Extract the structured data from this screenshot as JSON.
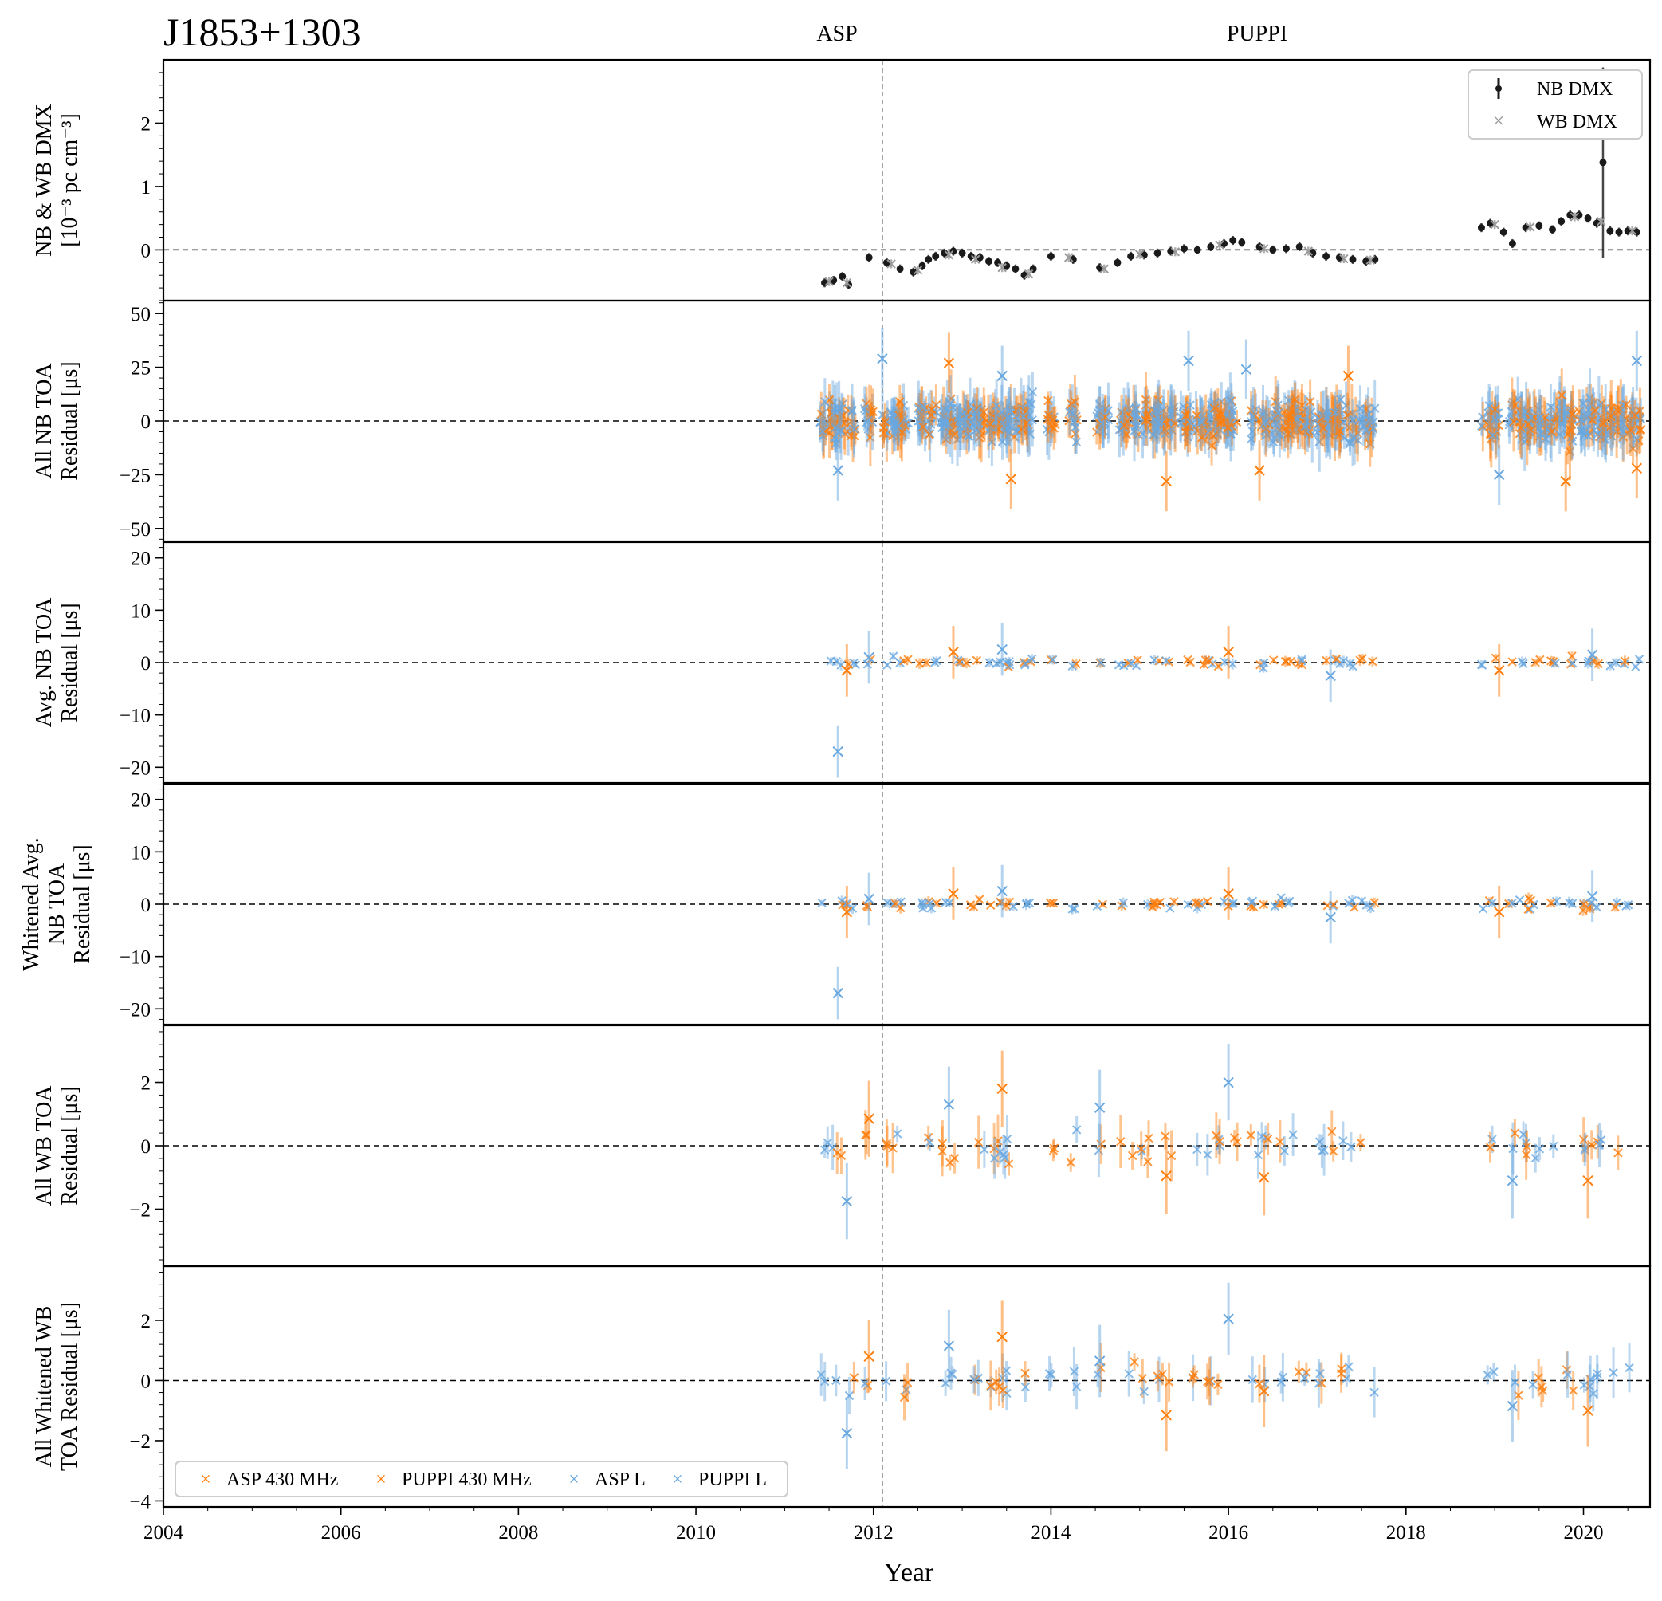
{
  "figure": {
    "title": "J1853+1303",
    "backend_labels": [
      "ASP",
      "PUPPI"
    ],
    "xlabel": "Year",
    "colors": {
      "asp_430": "#ff7f0e",
      "puppi_430": "#ff7f0e",
      "asp_l": "#6aa8e0",
      "puppi_l": "#6aa8e0",
      "nb_dmx": "#1a1a1a",
      "wb_dmx": "#999999"
    }
  },
  "legend_top": {
    "entries": [
      "NB DMX",
      "WB DMX"
    ],
    "placement": "top-right"
  },
  "legend_bottom": {
    "entries": [
      "ASP 430 MHz",
      "PUPPI 430 MHz",
      "ASP L",
      "PUPPI L"
    ],
    "placement": "lower-left"
  },
  "chart_data": {
    "type": "scatter",
    "xlim": [
      2004,
      2020.75
    ],
    "x_ticks": [
      "2004",
      "2006",
      "2008",
      "2010",
      "2012",
      "2014",
      "2016",
      "2018",
      "2020"
    ],
    "backend_switch_year": 2012.1,
    "panels": [
      {
        "ylabel_lines": [
          "NB & WB DMX",
          "[10⁻³ pc cm⁻³]"
        ],
        "ylim": [
          -0.8,
          3.0
        ],
        "y_ticks": [
          "0",
          "1",
          "2"
        ],
        "series": [
          {
            "name": "NB DMX",
            "points": [
              [
                2011.45,
                -0.52
              ],
              [
                2011.55,
                -0.48
              ],
              [
                2011.65,
                -0.42
              ],
              [
                2011.72,
                -0.55
              ],
              [
                2011.95,
                -0.12
              ],
              [
                2012.15,
                -0.2
              ],
              [
                2012.3,
                -0.3
              ],
              [
                2012.45,
                -0.35
              ],
              [
                2012.55,
                -0.25
              ],
              [
                2012.62,
                -0.15
              ],
              [
                2012.7,
                -0.1
              ],
              [
                2012.8,
                -0.05
              ],
              [
                2012.9,
                -0.02
              ],
              [
                2013.0,
                -0.05
              ],
              [
                2013.1,
                -0.1
              ],
              [
                2013.2,
                -0.12
              ],
              [
                2013.3,
                -0.18
              ],
              [
                2013.4,
                -0.2
              ],
              [
                2013.5,
                -0.25
              ],
              [
                2013.6,
                -0.3
              ],
              [
                2013.7,
                -0.4
              ],
              [
                2013.8,
                -0.3
              ],
              [
                2014.0,
                -0.1
              ],
              [
                2014.25,
                -0.15
              ],
              [
                2014.55,
                -0.28
              ],
              [
                2014.75,
                -0.2
              ],
              [
                2014.9,
                -0.1
              ],
              [
                2015.05,
                -0.08
              ],
              [
                2015.2,
                -0.05
              ],
              [
                2015.35,
                -0.02
              ],
              [
                2015.5,
                0.02
              ],
              [
                2015.65,
                0.0
              ],
              [
                2015.8,
                0.05
              ],
              [
                2015.95,
                0.1
              ],
              [
                2016.05,
                0.15
              ],
              [
                2016.15,
                0.12
              ],
              [
                2016.35,
                0.05
              ],
              [
                2016.5,
                0.0
              ],
              [
                2016.65,
                0.02
              ],
              [
                2016.8,
                0.05
              ],
              [
                2016.95,
                -0.05
              ],
              [
                2017.1,
                -0.1
              ],
              [
                2017.25,
                -0.12
              ],
              [
                2017.4,
                -0.15
              ],
              [
                2017.55,
                -0.18
              ],
              [
                2017.65,
                -0.15
              ],
              [
                2018.85,
                0.35
              ],
              [
                2018.95,
                0.42
              ],
              [
                2019.1,
                0.28
              ],
              [
                2019.2,
                0.1
              ],
              [
                2019.35,
                0.35
              ],
              [
                2019.5,
                0.38
              ],
              [
                2019.65,
                0.32
              ],
              [
                2019.75,
                0.45
              ],
              [
                2019.85,
                0.55
              ],
              [
                2019.95,
                0.55
              ],
              [
                2020.05,
                0.5
              ],
              [
                2020.15,
                0.42
              ],
              [
                2020.22,
                1.38
              ],
              [
                2020.3,
                0.3
              ],
              [
                2020.4,
                0.28
              ],
              [
                2020.5,
                0.3
              ],
              [
                2020.6,
                0.28
              ]
            ]
          },
          {
            "name": "WB DMX",
            "points": [
              [
                2011.5,
                -0.5
              ],
              [
                2011.7,
                -0.52
              ],
              [
                2012.2,
                -0.22
              ],
              [
                2012.5,
                -0.32
              ],
              [
                2012.85,
                -0.08
              ],
              [
                2013.15,
                -0.15
              ],
              [
                2013.45,
                -0.28
              ],
              [
                2013.75,
                -0.38
              ],
              [
                2014.2,
                -0.12
              ],
              [
                2014.6,
                -0.3
              ],
              [
                2015.0,
                -0.07
              ],
              [
                2015.4,
                -0.03
              ],
              [
                2015.9,
                0.08
              ],
              [
                2016.4,
                0.02
              ],
              [
                2016.9,
                -0.02
              ],
              [
                2017.3,
                -0.14
              ],
              [
                2017.6,
                -0.16
              ],
              [
                2019.0,
                0.4
              ],
              [
                2019.4,
                0.36
              ],
              [
                2019.9,
                0.52
              ],
              [
                2020.2,
                0.45
              ],
              [
                2020.55,
                0.3
              ]
            ]
          }
        ]
      },
      {
        "ylabel_lines": [
          "All NB TOA",
          "Residual [μs]"
        ],
        "ylim": [
          -56,
          56
        ],
        "y_ticks": [
          "50",
          "25",
          "0",
          "−25",
          "−50"
        ],
        "y_tick_values": [
          50,
          25,
          0,
          -25,
          -50
        ],
        "points_outliers": [
          [
            2012.1,
            29
          ],
          [
            2012.85,
            27
          ],
          [
            2013.45,
            21
          ],
          [
            2013.55,
            -27
          ],
          [
            2015.55,
            28
          ],
          [
            2015.3,
            -28
          ],
          [
            2016.2,
            24
          ],
          [
            2017.35,
            21
          ],
          [
            2019.05,
            -25
          ],
          [
            2019.8,
            -28
          ],
          [
            2020.6,
            28
          ],
          [
            2020.6,
            -22
          ],
          [
            2011.6,
            -23
          ],
          [
            2016.35,
            -23
          ]
        ]
      },
      {
        "ylabel_lines": [
          "Avg. NB TOA",
          "Residual [μs]"
        ],
        "ylim": [
          -23,
          23
        ],
        "y_ticks": [
          "20",
          "10",
          "0",
          "−10",
          "−20"
        ],
        "y_tick_values": [
          20,
          10,
          0,
          -10,
          -20
        ],
        "points_outliers": [
          [
            2011.6,
            -17
          ],
          [
            2011.7,
            -1.5
          ],
          [
            2011.95,
            1
          ],
          [
            2012.9,
            2
          ],
          [
            2013.45,
            2.5
          ],
          [
            2016.0,
            2
          ],
          [
            2017.15,
            -2.5
          ],
          [
            2019.05,
            -1.5
          ],
          [
            2020.1,
            1.5
          ]
        ]
      },
      {
        "ylabel_lines": [
          "Whitened Avg.",
          "NB TOA",
          "Residual [μs]"
        ],
        "ylim": [
          -23,
          23
        ],
        "y_ticks": [
          "20",
          "10",
          "0",
          "−10",
          "−20"
        ],
        "y_tick_values": [
          20,
          10,
          0,
          -10,
          -20
        ],
        "points_outliers": [
          [
            2011.6,
            -17
          ],
          [
            2011.7,
            -1.5
          ],
          [
            2011.95,
            1
          ],
          [
            2012.9,
            2
          ],
          [
            2013.45,
            2.5
          ],
          [
            2016.0,
            2
          ],
          [
            2017.15,
            -2.5
          ],
          [
            2019.05,
            -1.5
          ],
          [
            2020.1,
            1.5
          ]
        ]
      },
      {
        "ylabel_lines": [
          "All WB TOA",
          "Residual [μs]"
        ],
        "ylim": [
          -3.8,
          3.8
        ],
        "y_ticks": [
          "2",
          "0",
          "−2"
        ],
        "y_tick_values": [
          2,
          0,
          -2
        ],
        "points_outliers": [
          [
            2011.7,
            -1.75
          ],
          [
            2011.95,
            0.85
          ],
          [
            2012.85,
            1.3
          ],
          [
            2013.45,
            1.8
          ],
          [
            2014.55,
            1.2
          ],
          [
            2015.3,
            -0.95
          ],
          [
            2016.0,
            2.0
          ],
          [
            2016.4,
            -1.0
          ],
          [
            2019.2,
            -1.1
          ],
          [
            2020.05,
            -1.1
          ]
        ]
      },
      {
        "ylabel_lines": [
          "All Whitened WB",
          "TOA Residual [μs]"
        ],
        "ylim": [
          -4.2,
          3.8
        ],
        "y_ticks": [
          "2",
          "0",
          "−2",
          "−4"
        ],
        "y_tick_values": [
          2,
          0,
          -2,
          -4
        ],
        "points_outliers": [
          [
            2011.7,
            -1.75
          ],
          [
            2011.95,
            0.8
          ],
          [
            2012.85,
            1.15
          ],
          [
            2013.45,
            1.45
          ],
          [
            2014.55,
            0.65
          ],
          [
            2015.3,
            -1.15
          ],
          [
            2016.0,
            2.05
          ],
          [
            2016.4,
            -0.35
          ],
          [
            2019.2,
            -0.85
          ],
          [
            2020.05,
            -1.0
          ]
        ]
      }
    ]
  }
}
